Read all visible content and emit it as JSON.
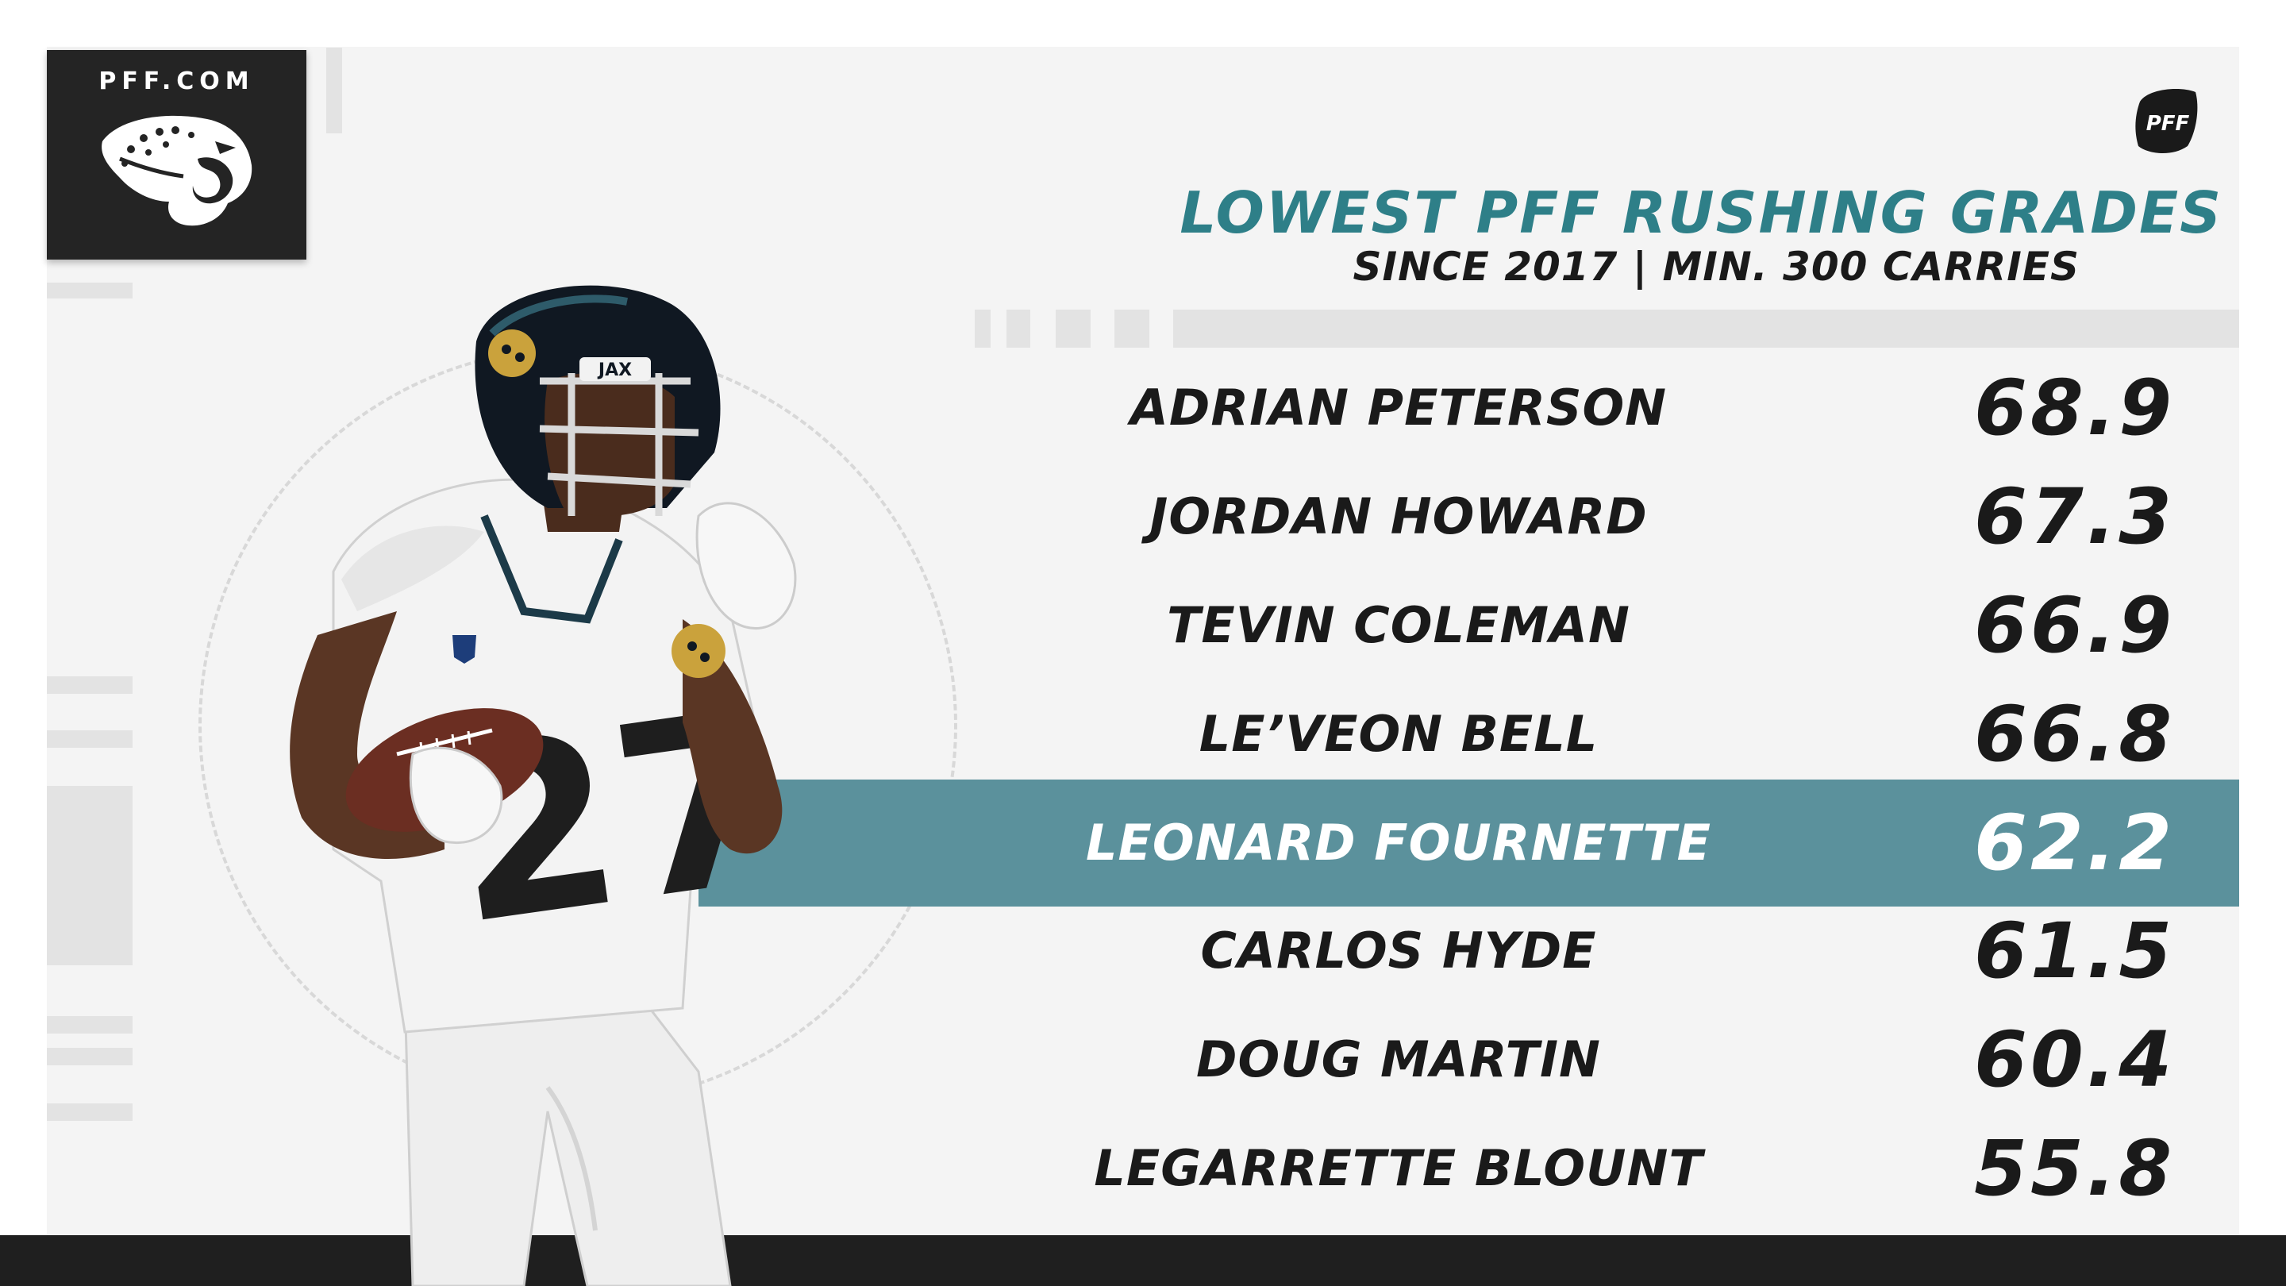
{
  "brand": {
    "site": "PFF.COM",
    "team_logo_icon": "jaguar-head-icon",
    "corner_badge_text": "PFF"
  },
  "header": {
    "title": "LOWEST PFF RUSHING GRADES",
    "subtitle": "SINCE 2017 | MIN. 300 CARRIES"
  },
  "colors": {
    "title": "#2e7f88",
    "highlight_row": "#5b919c",
    "text": "#1a1a1a",
    "background": "#f4f4f4",
    "bottom_bar": "#1f1f1f"
  },
  "rankings": {
    "highlighted": "LEONARD FOURNETTE",
    "rows": [
      {
        "name": "ADRIAN PETERSON",
        "grade": "68.9"
      },
      {
        "name": "JORDAN HOWARD",
        "grade": "67.3"
      },
      {
        "name": "TEVIN COLEMAN",
        "grade": "66.9"
      },
      {
        "name": "LE’VEON BELL",
        "grade": "66.8"
      },
      {
        "name": "LEONARD FOURNETTE",
        "grade": "62.2"
      },
      {
        "name": "CARLOS HYDE",
        "grade": "61.5"
      },
      {
        "name": "DOUG MARTIN",
        "grade": "60.4"
      },
      {
        "name": "LEGARRETTE BLOUNT",
        "grade": "55.8"
      }
    ]
  },
  "photo": {
    "subject": "running-back-in-white-jersey-carrying-football",
    "jersey_number": "27",
    "helmet_text": "JAX"
  }
}
